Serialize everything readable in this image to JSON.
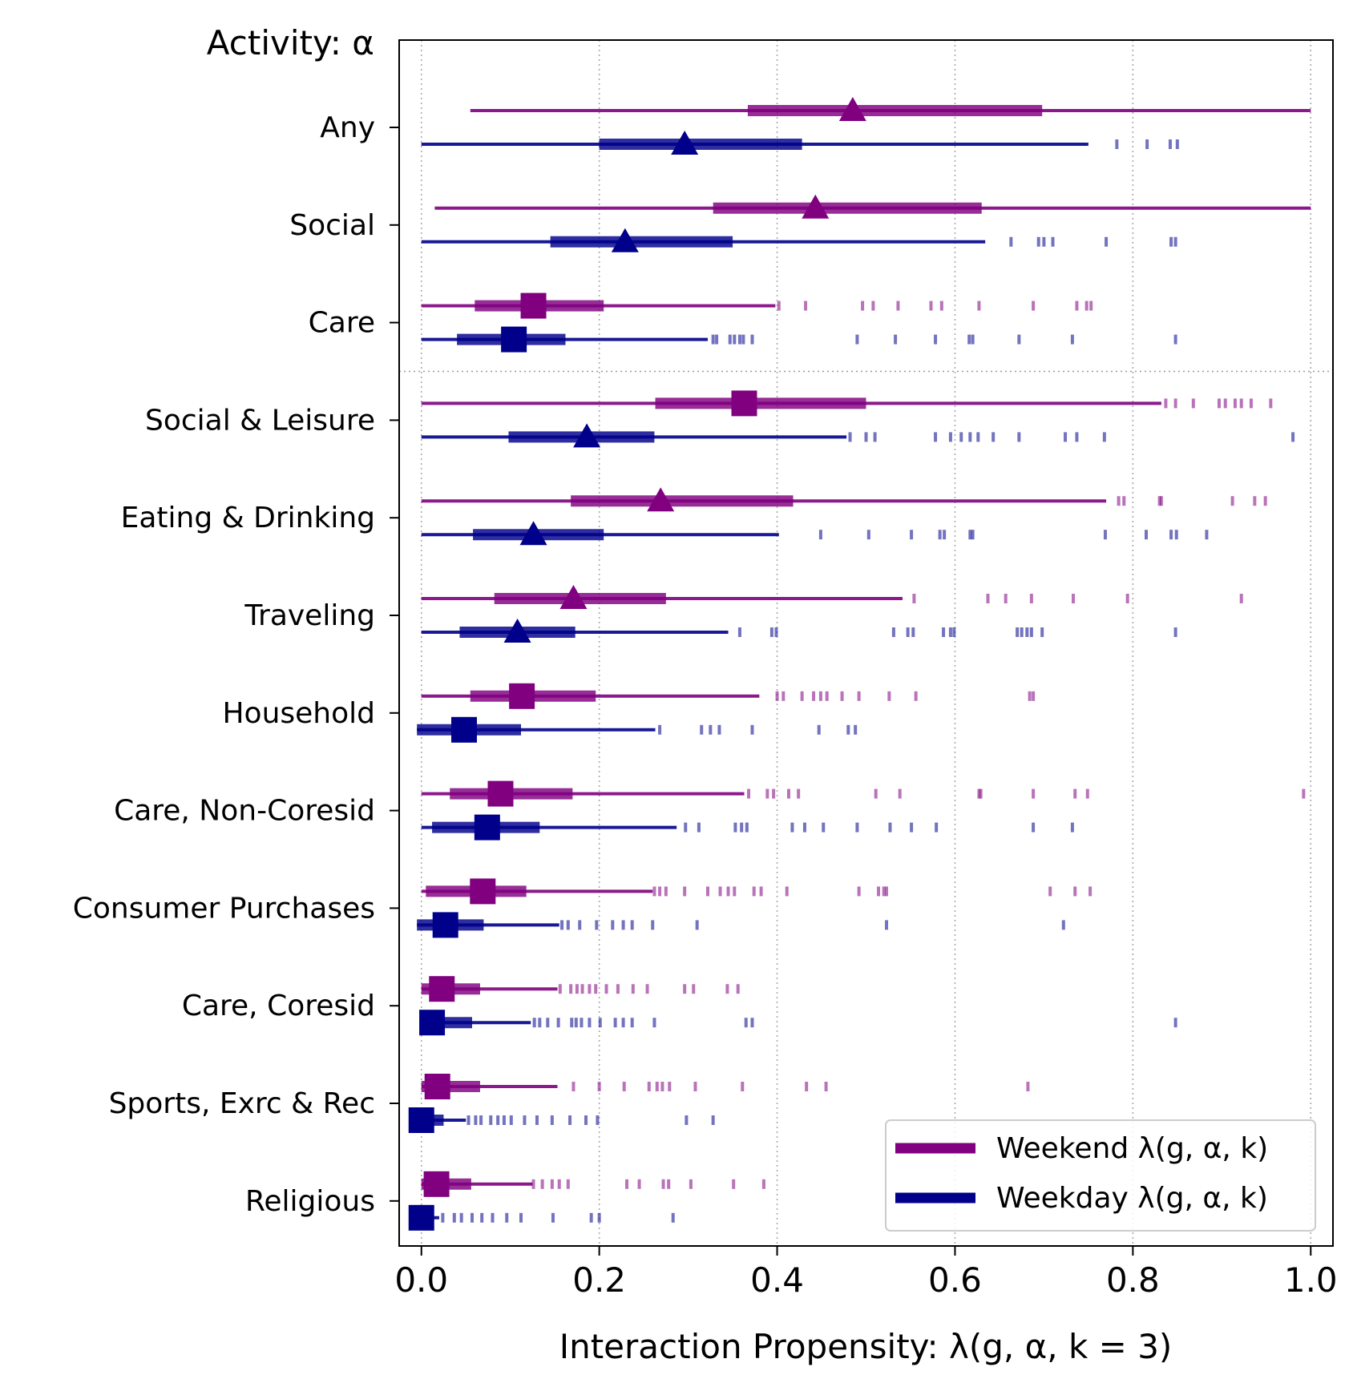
{
  "chart_data": {
    "type": "boxplot",
    "title": "",
    "corner_label": "Activity: α",
    "xlabel": "Interaction Propensity: λ(g, α, k = 3)",
    "ylabel": "",
    "xlim": [
      -0.025,
      1.025
    ],
    "x_ticks": [
      0.0,
      0.2,
      0.4,
      0.6,
      0.8,
      1.0
    ],
    "x_tick_labels": [
      "0.0",
      "0.2",
      "0.4",
      "0.6",
      "0.8",
      "1.0"
    ],
    "grid": "vertical dotted",
    "separator_after_category": "Care",
    "legend": {
      "position": "lower right",
      "entries": [
        {
          "label": "Weekend λ(g, α, k)",
          "series": "weekend"
        },
        {
          "label": "Weekday λ(g, α, k)",
          "series": "weekday"
        }
      ]
    },
    "colors": {
      "weekend": "#800080",
      "weekday": "#00008B"
    },
    "categories": [
      "Any",
      "Social",
      "Care",
      "Social & Leisure",
      "Eating & Drinking",
      "Traveling",
      "Household ",
      "Care, Non-Coresid",
      "Consumer Purchases",
      "Care, Coresid",
      "Sports, Exrc & Rec",
      "Religious"
    ],
    "series": [
      {
        "name": "Weekend",
        "key": "weekend",
        "boxes": [
          {
            "whisker_low": 0.055,
            "q1": 0.367,
            "median": 0.485,
            "q3": 0.698,
            "whisker_high": 1.0,
            "marker": "triangle",
            "outliers": []
          },
          {
            "whisker_low": 0.015,
            "q1": 0.328,
            "median": 0.443,
            "q3": 0.63,
            "whisker_high": 1.0,
            "marker": "triangle",
            "outliers": []
          },
          {
            "whisker_low": 0.0,
            "q1": 0.06,
            "median": 0.126,
            "q3": 0.205,
            "whisker_high": 0.398,
            "marker": "square",
            "outliers": [
              0.402,
              0.432,
              0.496,
              0.508,
              0.536,
              0.573,
              0.585,
              0.627,
              0.688,
              0.737,
              0.748,
              0.753
            ]
          },
          {
            "whisker_low": 0.0,
            "q1": 0.263,
            "median": 0.363,
            "q3": 0.5,
            "whisker_high": 0.832,
            "marker": "square",
            "outliers": [
              0.837,
              0.848,
              0.868,
              0.897,
              0.904,
              0.915,
              0.922,
              0.933,
              0.955
            ]
          },
          {
            "whisker_low": 0.0,
            "q1": 0.168,
            "median": 0.269,
            "q3": 0.418,
            "whisker_high": 0.77,
            "marker": "triangle",
            "outliers": [
              0.784,
              0.79,
              0.83,
              0.832,
              0.912,
              0.937,
              0.949
            ]
          },
          {
            "whisker_low": 0.0,
            "q1": 0.082,
            "median": 0.171,
            "q3": 0.275,
            "whisker_high": 0.541,
            "marker": "triangle",
            "outliers": [
              0.554,
              0.637,
              0.657,
              0.686,
              0.733,
              0.794,
              0.922
            ]
          },
          {
            "whisker_low": 0.0,
            "q1": 0.055,
            "median": 0.113,
            "q3": 0.196,
            "whisker_high": 0.38,
            "marker": "square",
            "outliers": [
              0.4,
              0.407,
              0.428,
              0.441,
              0.449,
              0.456,
              0.473,
              0.492,
              0.526,
              0.556,
              0.684,
              0.688
            ]
          },
          {
            "whisker_low": 0.0,
            "q1": 0.032,
            "median": 0.089,
            "q3": 0.17,
            "whisker_high": 0.363,
            "marker": "square",
            "outliers": [
              0.368,
              0.389,
              0.396,
              0.413,
              0.424,
              0.511,
              0.538,
              0.627,
              0.629,
              0.688,
              0.735,
              0.749,
              0.992
            ]
          },
          {
            "whisker_low": 0.0,
            "q1": 0.005,
            "median": 0.069,
            "q3": 0.118,
            "whisker_high": 0.26,
            "marker": "square",
            "outliers": [
              0.262,
              0.268,
              0.275,
              0.296,
              0.322,
              0.336,
              0.345,
              0.352,
              0.374,
              0.382,
              0.411,
              0.492,
              0.514,
              0.52,
              0.523,
              0.707,
              0.735,
              0.752
            ]
          },
          {
            "whisker_low": 0.0,
            "q1": 0.0,
            "median": 0.023,
            "q3": 0.066,
            "whisker_high": 0.153,
            "marker": "square",
            "outliers": [
              0.156,
              0.168,
              0.175,
              0.181,
              0.189,
              0.196,
              0.208,
              0.221,
              0.238,
              0.254,
              0.296,
              0.306,
              0.344,
              0.356
            ]
          },
          {
            "whisker_low": 0.0,
            "q1": 0.0,
            "median": 0.018,
            "q3": 0.066,
            "whisker_high": 0.153,
            "marker": "square",
            "outliers": [
              0.171,
              0.2,
              0.228,
              0.256,
              0.265,
              0.271,
              0.279,
              0.308,
              0.361,
              0.433,
              0.455,
              0.682
            ]
          },
          {
            "whisker_low": 0.0,
            "q1": 0.0,
            "median": 0.017,
            "q3": 0.056,
            "whisker_high": 0.125,
            "marker": "square",
            "outliers": [
              0.126,
              0.136,
              0.147,
              0.155,
              0.165,
              0.231,
              0.245,
              0.272,
              0.278,
              0.303,
              0.351,
              0.385
            ]
          }
        ]
      },
      {
        "name": "Weekday",
        "key": "weekday",
        "boxes": [
          {
            "whisker_low": 0.0,
            "q1": 0.2,
            "median": 0.296,
            "q3": 0.428,
            "whisker_high": 0.75,
            "marker": "triangle",
            "outliers": [
              0.782,
              0.816,
              0.842,
              0.85
            ]
          },
          {
            "whisker_low": 0.0,
            "q1": 0.145,
            "median": 0.229,
            "q3": 0.35,
            "whisker_high": 0.634,
            "marker": "triangle",
            "outliers": [
              0.663,
              0.694,
              0.7,
              0.71,
              0.77,
              0.843,
              0.848
            ]
          },
          {
            "whisker_low": 0.0,
            "q1": 0.04,
            "median": 0.104,
            "q3": 0.162,
            "whisker_high": 0.322,
            "marker": "square",
            "outliers": [
              0.328,
              0.332,
              0.347,
              0.352,
              0.358,
              0.362,
              0.372,
              0.49,
              0.533,
              0.578,
              0.616,
              0.62,
              0.672,
              0.732,
              0.848
            ]
          },
          {
            "whisker_low": 0.0,
            "q1": 0.098,
            "median": 0.186,
            "q3": 0.262,
            "whisker_high": 0.478,
            "marker": "triangle",
            "outliers": [
              0.482,
              0.5,
              0.51,
              0.578,
              0.595,
              0.607,
              0.617,
              0.626,
              0.643,
              0.672,
              0.724,
              0.737,
              0.768,
              0.98
            ]
          },
          {
            "whisker_low": 0.0,
            "q1": 0.058,
            "median": 0.126,
            "q3": 0.205,
            "whisker_high": 0.402,
            "marker": "triangle",
            "outliers": [
              0.449,
              0.503,
              0.551,
              0.583,
              0.588,
              0.617,
              0.62,
              0.769,
              0.815,
              0.843,
              0.849,
              0.883
            ]
          },
          {
            "whisker_low": 0.0,
            "q1": 0.043,
            "median": 0.108,
            "q3": 0.173,
            "whisker_high": 0.345,
            "marker": "triangle",
            "outliers": [
              0.358,
              0.394,
              0.399,
              0.531,
              0.547,
              0.553,
              0.587,
              0.595,
              0.599,
              0.67,
              0.675,
              0.681,
              0.686,
              0.698,
              0.848
            ]
          },
          {
            "whisker_low": -0.005,
            "q1": -0.005,
            "median": 0.048,
            "q3": 0.112,
            "whisker_high": 0.263,
            "marker": "square",
            "outliers": [
              0.268,
              0.315,
              0.325,
              0.335,
              0.372,
              0.447,
              0.48,
              0.488
            ]
          },
          {
            "whisker_low": 0.0,
            "q1": 0.012,
            "median": 0.074,
            "q3": 0.133,
            "whisker_high": 0.287,
            "marker": "square",
            "outliers": [
              0.297,
              0.312,
              0.353,
              0.36,
              0.366,
              0.417,
              0.431,
              0.452,
              0.49,
              0.527,
              0.551,
              0.579,
              0.688,
              0.732
            ]
          },
          {
            "whisker_low": -0.005,
            "q1": -0.005,
            "median": 0.027,
            "q3": 0.07,
            "whisker_high": 0.155,
            "marker": "square",
            "outliers": [
              0.158,
              0.165,
              0.178,
              0.197,
              0.215,
              0.227,
              0.237,
              0.26,
              0.31,
              0.523,
              0.722
            ]
          },
          {
            "whisker_low": 0.0,
            "q1": 0.0,
            "median": 0.012,
            "q3": 0.057,
            "whisker_high": 0.123,
            "marker": "square",
            "outliers": [
              0.127,
              0.133,
              0.142,
              0.154,
              0.169,
              0.174,
              0.18,
              0.189,
              0.201,
              0.218,
              0.227,
              0.237,
              0.262,
              0.365,
              0.372,
              0.848
            ]
          },
          {
            "whisker_low": 0.0,
            "q1": 0.0,
            "median": 0.0,
            "q3": 0.025,
            "whisker_high": 0.05,
            "marker": "square",
            "outliers": [
              0.053,
              0.061,
              0.067,
              0.078,
              0.086,
              0.093,
              0.101,
              0.116,
              0.13,
              0.147,
              0.167,
              0.185,
              0.198,
              0.298,
              0.328
            ]
          },
          {
            "whisker_low": 0.0,
            "q1": 0.0,
            "median": 0.0,
            "q3": 0.012,
            "whisker_high": 0.02,
            "marker": "square",
            "outliers": [
              0.024,
              0.037,
              0.045,
              0.057,
              0.068,
              0.08,
              0.096,
              0.112,
              0.148,
              0.191,
              0.2,
              0.283
            ]
          }
        ]
      }
    ]
  }
}
